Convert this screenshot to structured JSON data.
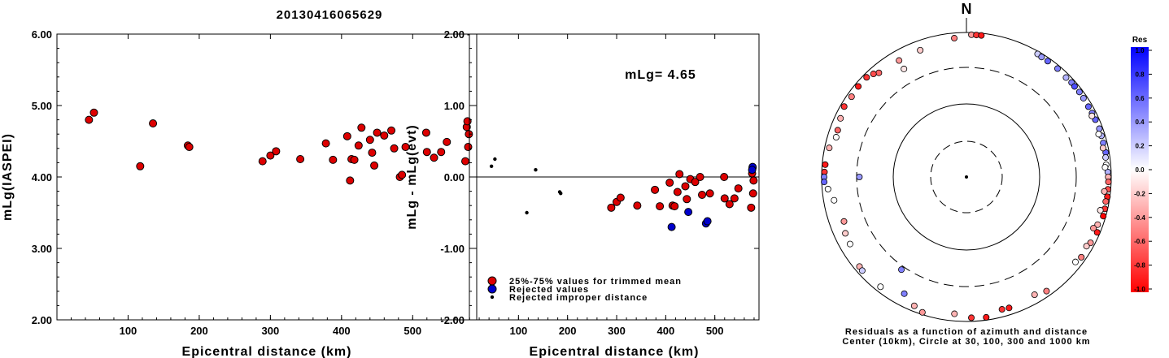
{
  "figure_title": "20130416065629",
  "chart_data": [
    {
      "type": "scatter",
      "xlabel": "Epicentral distance (km)",
      "ylabel": "mLg(IASPEI)",
      "xlim": [
        0,
        590
      ],
      "ylim": [
        2.0,
        6.0
      ],
      "x_ticks": [
        "100",
        "200",
        "300",
        "400",
        "500"
      ],
      "y_ticks": [
        "2.00",
        "3.00",
        "4.00",
        "5.00",
        "6.00"
      ],
      "series": [
        {
          "color": "#dd0000",
          "points": [
            [
              45,
              4.8
            ],
            [
              52,
              4.9
            ],
            [
              117,
              4.15
            ],
            [
              135,
              4.75
            ],
            [
              184,
              4.44
            ],
            [
              186,
              4.42
            ],
            [
              289,
              4.22
            ],
            [
              300,
              4.3
            ],
            [
              308,
              4.36
            ],
            [
              342,
              4.25
            ],
            [
              378,
              4.47
            ],
            [
              388,
              4.24
            ],
            [
              408,
              4.57
            ],
            [
              412,
              3.95
            ],
            [
              414,
              4.25
            ],
            [
              418,
              4.24
            ],
            [
              424,
              4.44
            ],
            [
              428,
              4.69
            ],
            [
              440,
              4.52
            ],
            [
              443,
              4.34
            ],
            [
              446,
              4.16
            ],
            [
              450,
              4.62
            ],
            [
              460,
              4.58
            ],
            [
              470,
              4.65
            ],
            [
              474,
              4.4
            ],
            [
              482,
              4.0
            ],
            [
              485,
              4.03
            ],
            [
              490,
              4.42
            ],
            [
              519,
              4.62
            ],
            [
              520,
              4.35
            ],
            [
              530,
              4.27
            ],
            [
              540,
              4.35
            ],
            [
              548,
              4.49
            ],
            [
              574,
              4.22
            ],
            [
              576,
              4.7
            ],
            [
              577,
              4.78
            ],
            [
              578,
              4.42
            ],
            [
              579,
              4.6
            ]
          ]
        }
      ]
    },
    {
      "type": "scatter",
      "xlabel": "Epicentral distance (km)",
      "ylabel": "mLg - mLg(evt)",
      "xlim": [
        0,
        590
      ],
      "ylim": [
        -2.0,
        2.0
      ],
      "x_ticks": [
        "100",
        "200",
        "300",
        "400",
        "500"
      ],
      "y_ticks": [
        "-2.00",
        "-1.00",
        "0.00",
        "1.00",
        "2.00"
      ],
      "reference_line": 0.0,
      "annotation": "mLg= 4.65",
      "legend": [
        "25%-75% values for trimmed mean",
        "Rejected values",
        "Rejected improper distance"
      ],
      "series": [
        {
          "name": "25%-75% values for trimmed mean",
          "color": "#dd0000",
          "points": [
            [
              289,
              -0.43
            ],
            [
              300,
              -0.35
            ],
            [
              308,
              -0.29
            ],
            [
              342,
              -0.4
            ],
            [
              378,
              -0.18
            ],
            [
              388,
              -0.41
            ],
            [
              408,
              -0.08
            ],
            [
              414,
              -0.4
            ],
            [
              418,
              -0.41
            ],
            [
              424,
              -0.21
            ],
            [
              428,
              0.04
            ],
            [
              440,
              -0.13
            ],
            [
              443,
              -0.31
            ],
            [
              450,
              -0.03
            ],
            [
              460,
              -0.07
            ],
            [
              470,
              0.0
            ],
            [
              474,
              -0.25
            ],
            [
              490,
              -0.23
            ],
            [
              519,
              0.0
            ],
            [
              520,
              -0.3
            ],
            [
              530,
              -0.38
            ],
            [
              540,
              -0.3
            ],
            [
              548,
              -0.16
            ],
            [
              574,
              -0.43
            ],
            [
              576,
              0.05
            ],
            [
              577,
              0.13
            ],
            [
              578,
              -0.23
            ],
            [
              579,
              -0.05
            ]
          ]
        },
        {
          "name": "Rejected values",
          "color": "#0000cc",
          "points": [
            [
              412,
              -0.7
            ],
            [
              446,
              -0.49
            ],
            [
              482,
              -0.65
            ],
            [
              485,
              -0.62
            ],
            [
              577,
              0.14
            ],
            [
              576,
              0.1
            ]
          ]
        },
        {
          "name": "Rejected improper distance",
          "color": "#000000",
          "points": [
            [
              45,
              0.15
            ],
            [
              52,
              0.25
            ],
            [
              117,
              -0.5
            ],
            [
              135,
              0.1
            ],
            [
              184,
              -0.21
            ],
            [
              186,
              -0.23
            ]
          ]
        }
      ]
    },
    {
      "type": "polar-scatter",
      "north_label": "N",
      "caption": [
        "Residuals as a function of azimuth and distance",
        "Center (10km), Circle at 30, 100, 300 and 1000 km"
      ],
      "rings_km": [
        30,
        100,
        300,
        1000
      ],
      "colorbar": {
        "title": "Res",
        "ticks": [
          "1.0",
          "0.8",
          "0.6",
          "0.4",
          "0.2",
          "0.0",
          "-0.2",
          "-0.4",
          "-0.6",
          "-0.8",
          "-1.0"
        ]
      },
      "stations": [
        [
          2,
          1000,
          -0.4
        ],
        [
          4,
          1000,
          -0.8
        ],
        [
          6,
          1000,
          -0.9
        ],
        [
          355,
          900,
          -0.5
        ],
        [
          340,
          770,
          -0.2
        ],
        [
          330,
          760,
          -0.4
        ],
        [
          320,
          800,
          -0.6
        ],
        [
          318,
          880,
          -0.7
        ],
        [
          315,
          950,
          -0.8
        ],
        [
          310,
          950,
          -0.9
        ],
        [
          305,
          920,
          -0.5
        ],
        [
          300,
          950,
          -0.8
        ],
        [
          295,
          880,
          -0.3
        ],
        [
          290,
          820,
          -0.6
        ],
        [
          287,
          800,
          0.0
        ],
        [
          282,
          920,
          -0.3
        ],
        [
          275,
          970,
          -0.9
        ],
        [
          272,
          980,
          -0.8
        ],
        [
          270,
          990,
          0.5
        ],
        [
          268,
          990,
          0.6
        ],
        [
          265,
          880,
          0.0
        ],
        [
          260,
          750,
          0.0
        ],
        [
          250,
          650,
          -0.4
        ],
        [
          245,
          730,
          -0.2
        ],
        [
          240,
          750,
          0.0
        ],
        [
          230,
          900,
          -0.3
        ],
        [
          228,
          920,
          0.2
        ],
        [
          218,
          900,
          0.0
        ],
        [
          208,
          700,
          0.5
        ],
        [
          202,
          890,
          -0.3
        ],
        [
          198,
          1000,
          -0.4
        ],
        [
          185,
          840,
          -0.3
        ],
        [
          178,
          950,
          -0.8
        ],
        [
          172,
          980,
          -0.9
        ],
        [
          165,
          830,
          -0.8
        ],
        [
          162,
          850,
          -0.9
        ],
        [
          150,
          800,
          -0.3
        ],
        [
          145,
          900,
          -0.5
        ],
        [
          215,
          360,
          0.5
        ],
        [
          270,
          290,
          0.4
        ],
        [
          330,
          540,
          -0.1
        ],
        [
          30,
          990,
          0.2
        ],
        [
          32,
          970,
          0.4
        ],
        [
          35,
          970,
          0.6
        ],
        [
          40,
          970,
          0.5
        ],
        [
          45,
          940,
          0.3
        ],
        [
          48,
          960,
          0.5
        ],
        [
          50,
          950,
          0.7
        ],
        [
          53,
          960,
          0.5
        ],
        [
          56,
          950,
          0.4
        ],
        [
          60,
          940,
          0.6
        ],
        [
          63,
          945,
          0.5
        ],
        [
          66,
          950,
          0.6
        ],
        [
          70,
          960,
          0.4
        ],
        [
          73,
          950,
          0.3
        ],
        [
          76,
          945,
          0.5
        ],
        [
          80,
          960,
          0.6
        ],
        [
          82,
          930,
          0.2
        ],
        [
          85,
          920,
          0.0
        ],
        [
          88,
          960,
          0.3
        ],
        [
          90,
          970,
          -0.3
        ],
        [
          92,
          980,
          -0.6
        ],
        [
          95,
          980,
          -0.7
        ],
        [
          98,
          990,
          -0.9
        ],
        [
          100,
          960,
          -0.6
        ],
        [
          103,
          980,
          -0.8
        ],
        [
          106,
          990,
          -1.0
        ],
        [
          110,
          900,
          -0.3
        ],
        [
          113,
          980,
          -0.9
        ],
        [
          118,
          930,
          -0.4
        ],
        [
          120,
          870,
          -0.2
        ],
        [
          125,
          920,
          -0.5
        ],
        [
          128,
          860,
          0.0
        ],
        [
          64,
          900,
          -0.1
        ],
        [
          72,
          880,
          0.0
        ],
        [
          78,
          900,
          -0.2
        ],
        [
          86,
          880,
          0.0
        ],
        [
          96,
          870,
          -0.3
        ],
        [
          104,
          850,
          -0.1
        ],
        [
          112,
          820,
          -0.4
        ]
      ]
    }
  ]
}
